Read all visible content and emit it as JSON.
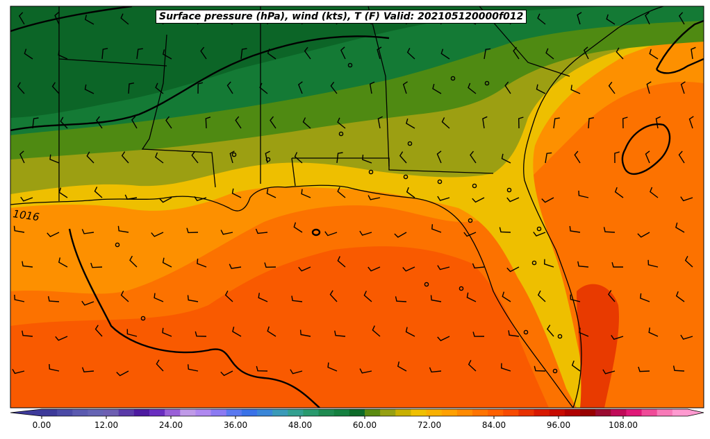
{
  "title": "Surface pressure (hPa), wind (kts), T (F) Valid: 202105120000f012",
  "map": {
    "region": "Southeastern United States and Gulf of Mexico",
    "background_fill": "temperature (F)",
    "contour_label": "1016",
    "overlays": [
      "isobars",
      "wind barbs",
      "state boundaries",
      "coastlines",
      "station circles"
    ]
  },
  "colorbar": {
    "min": -6,
    "max": 120,
    "step": 3,
    "extend": "both",
    "tick_labels": [
      "0.00",
      "12.00",
      "24.00",
      "36.00",
      "48.00",
      "60.00",
      "72.00",
      "84.00",
      "96.00",
      "108.00"
    ],
    "colors": [
      "#3d3a9a",
      "#4b4aa6",
      "#5b5ab0",
      "#6664b4",
      "#6e5fb2",
      "#5a3aa8",
      "#4d1aa0",
      "#6a2ec0",
      "#9a60d8",
      "#c09ae8",
      "#b088f0",
      "#8c7af2",
      "#5a78f0",
      "#3a72e8",
      "#3a86d8",
      "#3a9ab8",
      "#33a090",
      "#2a9a6e",
      "#1f8a50",
      "#158040",
      "#0d6a28",
      "#5a8a10",
      "#96a012",
      "#c8b000",
      "#f0c000",
      "#f8b000",
      "#ffa000",
      "#ff8a00",
      "#ff7400",
      "#ff6000",
      "#f84a00",
      "#e83000",
      "#d81800",
      "#c80a00",
      "#b00000",
      "#980000",
      "#9a0a30",
      "#c00a58",
      "#e01878",
      "#f04a98",
      "#f87ab8",
      "#ff9ad0"
    ]
  },
  "colors": {
    "green_dark": "#0c6527",
    "green_mid": "#147a35",
    "olive_dark": "#4f8a12",
    "olive": "#9c9f12",
    "yellow": "#eebf00",
    "orange_light": "#fd9000",
    "orange": "#fc7200",
    "orange_red": "#f95a00",
    "red_orange": "#e83a00"
  }
}
